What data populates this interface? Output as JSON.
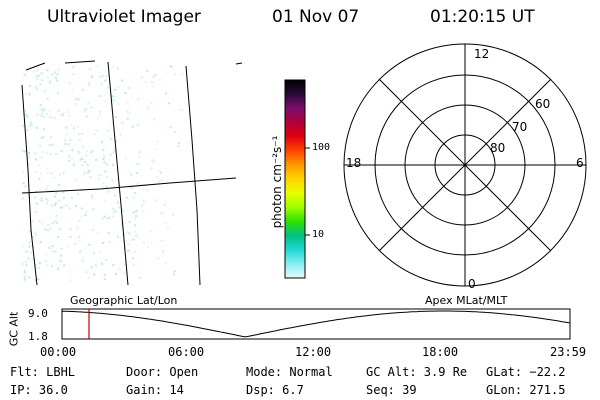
{
  "header": {
    "instrument": "Ultraviolet Imager",
    "date": "01 Nov 07",
    "time": "01:20:15 UT"
  },
  "colorbar": {
    "unit_label": "photon cm⁻²s⁻¹",
    "ticks": [
      "100",
      "10"
    ],
    "colors": [
      "#000000",
      "#2a0a3a",
      "#7a0f6a",
      "#b0003a",
      "#e00010",
      "#ff4400",
      "#ff9900",
      "#ffd400",
      "#e8ff00",
      "#9cff00",
      "#2ee000",
      "#00c080",
      "#20d8d8",
      "#88eef0",
      "#e6fafa"
    ]
  },
  "left_panel": {
    "name": "geographic-image"
  },
  "polar_plot": {
    "mlt_labels": {
      "top": "12",
      "right": "6",
      "bottom": "0",
      "left": "18"
    },
    "lat_labels": [
      "60",
      "70",
      "80"
    ]
  },
  "timeline": {
    "axis_label": "GC Alt",
    "y_ticks": [
      "9.0",
      "1.8"
    ],
    "left_title": "Geographic Lat/Lon",
    "right_title": "Apex MLat/MLT",
    "x_ticks": [
      "00:00",
      "06:00",
      "12:00",
      "18:00",
      "23:59"
    ],
    "marker_color": "#cc0000"
  },
  "status": {
    "flt": "Flt: LBHL",
    "ip": "IP: 36.0",
    "door": "Door: Open",
    "gain": "Gain: 14",
    "mode": "Mode: Normal",
    "dsp": "Dsp:     6.7",
    "gcalt": "GC Alt: 3.9 Re",
    "seq": "Seq: 39",
    "glat": "GLat: −22.2",
    "glon": "GLon: 271.5"
  }
}
